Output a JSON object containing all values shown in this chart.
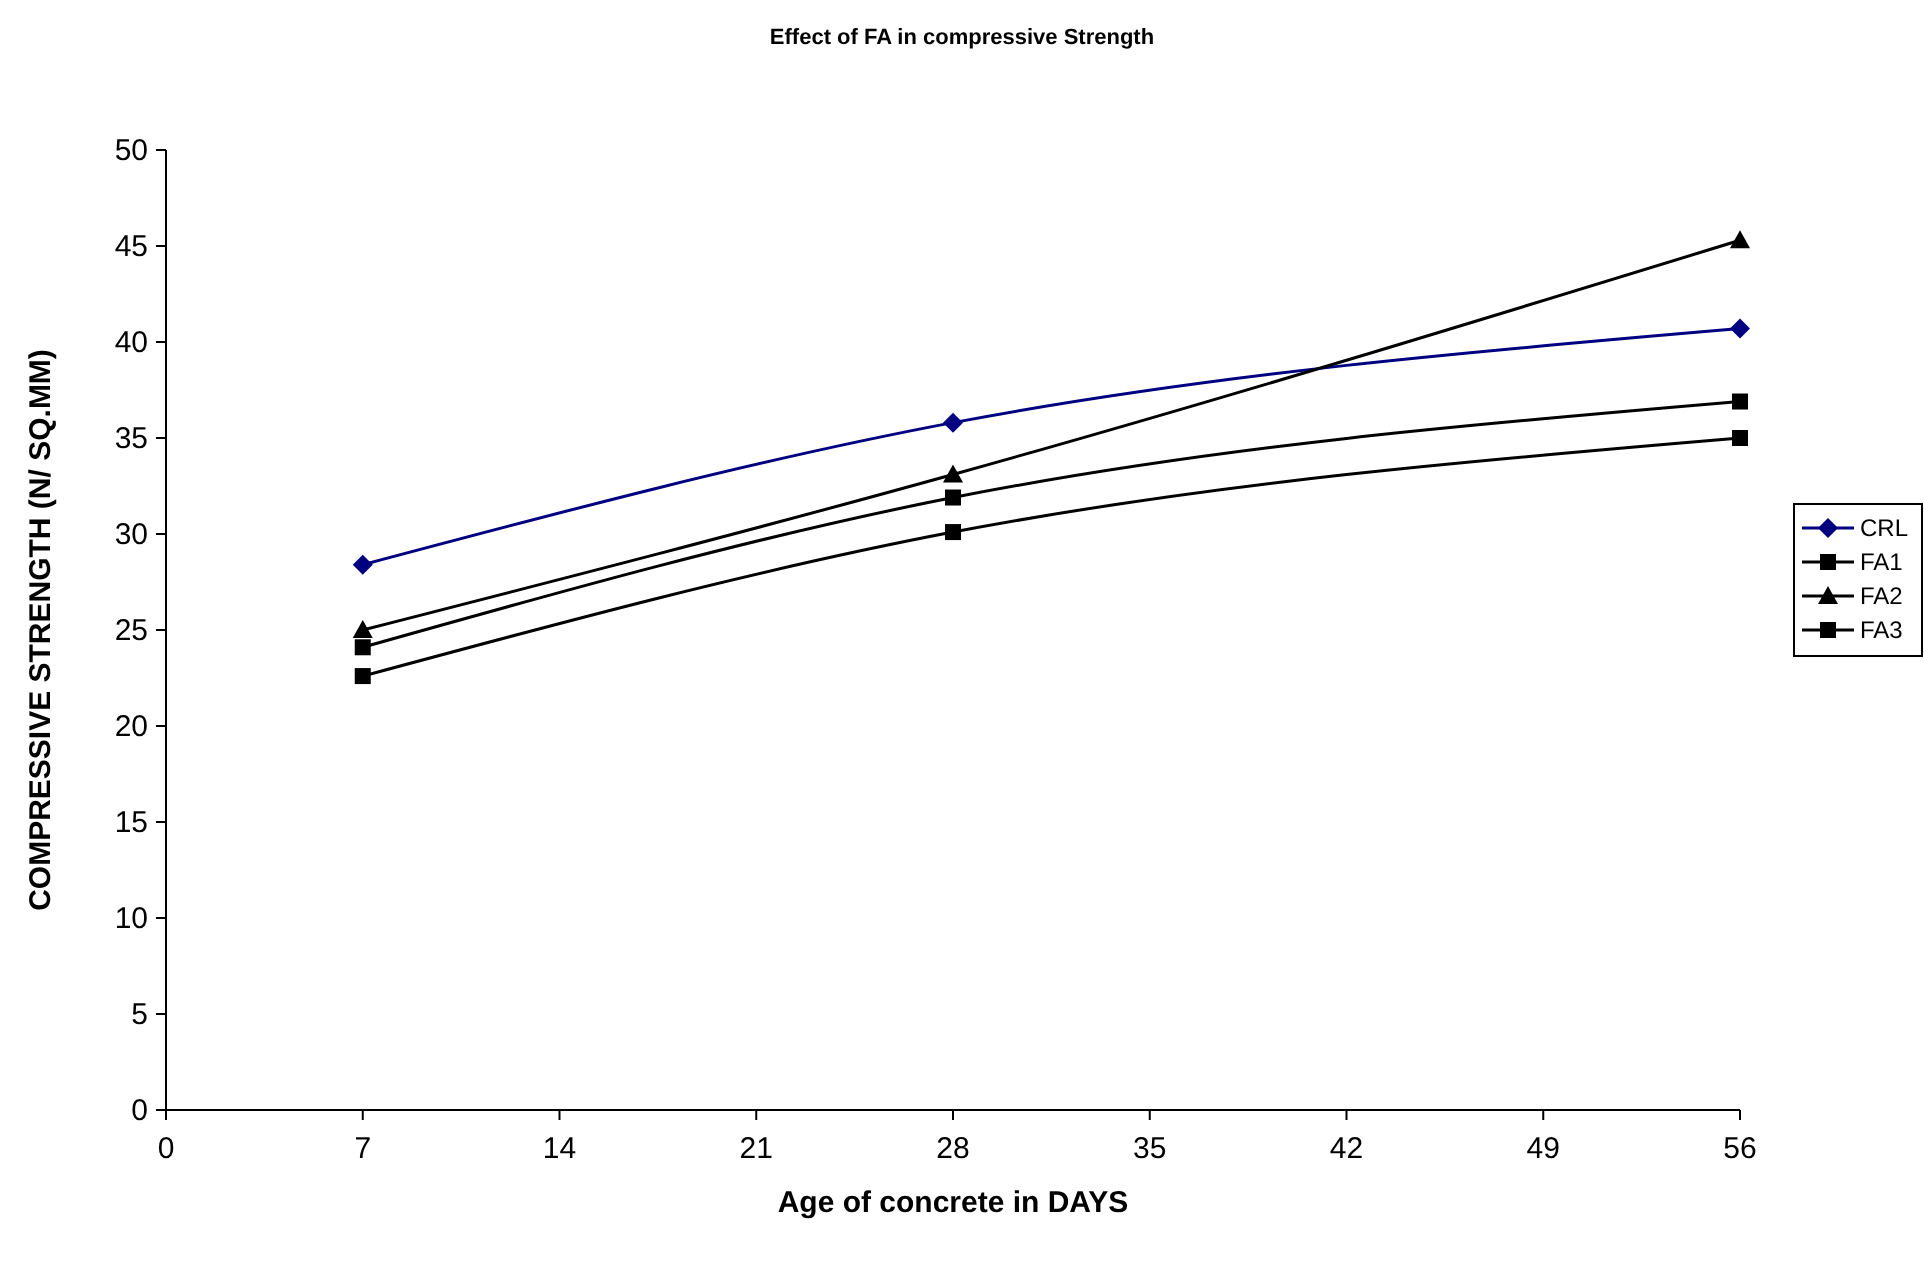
{
  "chart_data": {
    "type": "line",
    "title": "Effect of FA in compressive Strength",
    "xlabel": "Age of concrete  in DAYS",
    "ylabel": "COMPRESSIVE STRENGTH (N/ SQ.MM)",
    "x": [
      7,
      28,
      56
    ],
    "xlim": [
      0,
      56
    ],
    "xticks": [
      0,
      7,
      14,
      21,
      28,
      35,
      42,
      49,
      56
    ],
    "ylim": [
      0,
      50
    ],
    "yticks": [
      0,
      5,
      10,
      15,
      20,
      25,
      30,
      35,
      40,
      45,
      50
    ],
    "legend": "right",
    "grid": false,
    "series": [
      {
        "name": "CRL",
        "color": "#000080",
        "marker": "diamond",
        "values": [
          28.4,
          35.8,
          40.7
        ]
      },
      {
        "name": "FA1",
        "color": "#000000",
        "marker": "square",
        "values": [
          24.1,
          31.9,
          36.9
        ]
      },
      {
        "name": "FA2",
        "color": "#000000",
        "marker": "triangle",
        "values": [
          25.0,
          33.1,
          45.3
        ]
      },
      {
        "name": "FA3",
        "color": "#000000",
        "marker": "square",
        "values": [
          22.6,
          30.1,
          35.0
        ]
      }
    ]
  }
}
